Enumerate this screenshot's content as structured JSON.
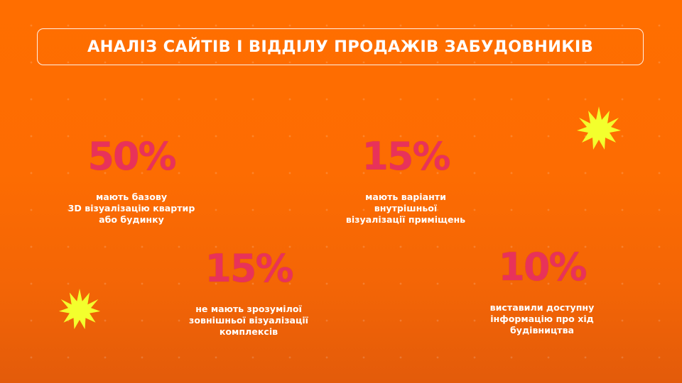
{
  "slide": {
    "title": "АНАЛІЗ САЙТІВ І ВІДДІЛУ ПРОДАЖІВ ЗАБУДОВНИКІВ",
    "colors": {
      "background": "#ff6e00",
      "accent": "#e8325a",
      "text": "#ffffff",
      "star": "#f3ff2d"
    },
    "stats": [
      {
        "value": "50%",
        "description": "мають базову\n3D візуалізацію квартир\nабо будинку"
      },
      {
        "value": "15%",
        "description": "мають варіанти\nвнутрішньої\nвізуалізації приміщень"
      },
      {
        "value": "15%",
        "description": "не мають зрозумілої\nзовнішньої візуалізації\nкомплексів"
      },
      {
        "value": "10%",
        "description": "виставили доступну\nінформацію про хід\nбудівництва"
      }
    ],
    "decorations": [
      "starburst-icon",
      "starburst-icon"
    ]
  }
}
